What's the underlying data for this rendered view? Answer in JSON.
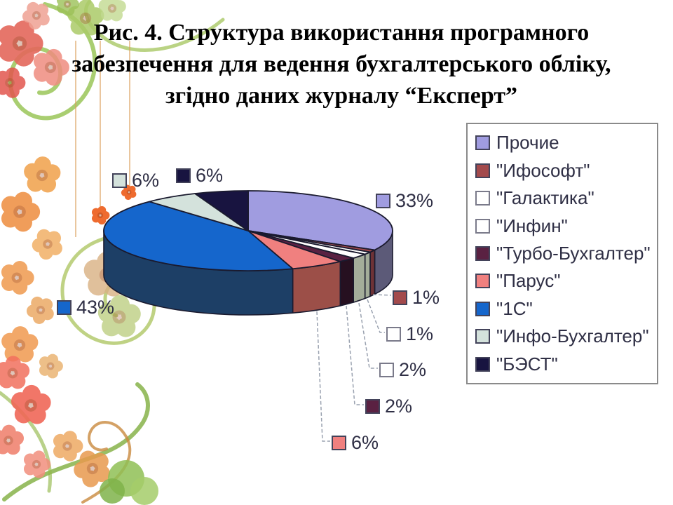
{
  "slide": {
    "title_lines": [
      "Рис. 4. Структура використання програмного",
      "забезпечення для ведення бухгалтерського обліку,",
      "згідно даних журналу “Експерт”"
    ]
  },
  "chart_data": {
    "type": "pie",
    "style": "3d-exploded-none",
    "start_angle_deg": 0,
    "direction": "clockwise",
    "legend_position": "right",
    "categories": [
      "Прочие",
      "\"Ифософт\"",
      "\"Галактика\"",
      "\"Инфин\"",
      "\"Турбо-Бухгалтер\"",
      "\"Парус\"",
      "\"1С\"",
      "\"Инфо-Бухгалтер\"",
      "\"БЭСТ\""
    ],
    "values": [
      33,
      1,
      1,
      2,
      2,
      6,
      43,
      6,
      6
    ],
    "slices": [
      {
        "label": "Прочие",
        "value": 33,
        "pct_label": "33%",
        "color": "#a09ce0",
        "side_color": "#5c5a78"
      },
      {
        "label": "\"Ифософт\"",
        "value": 1,
        "pct_label": "1%",
        "color": "#a34a4c",
        "side_color": "#6e3236"
      },
      {
        "label": "\"Галактика\"",
        "value": 1,
        "pct_label": "1%",
        "color": "#ffffff",
        "side_color": "#a4ad9a"
      },
      {
        "label": "\"Инфин\"",
        "value": 2,
        "pct_label": "2%",
        "color": "#ffffff",
        "side_color": "#a4ad9a"
      },
      {
        "label": "\"Турбо-Бухгалтер\"",
        "value": 2,
        "pct_label": "2%",
        "color": "#5a2142",
        "side_color": "#261020"
      },
      {
        "label": "\"Парус\"",
        "value": 6,
        "pct_label": "6%",
        "color": "#f0807f",
        "side_color": "#9c4f48"
      },
      {
        "label": "\"1С\"",
        "value": 43,
        "pct_label": "43%",
        "color": "#1566cc",
        "side_color": "#1d3f66"
      },
      {
        "label": "\"Инфо-Бухгалтер\"",
        "value": 6,
        "pct_label": "6%",
        "color": "#d4e2dc",
        "side_color": "#8fa29a"
      },
      {
        "label": "\"БЭСТ\"",
        "value": 6,
        "pct_label": "6%",
        "color": "#181440",
        "side_color": "#0c0a24"
      }
    ],
    "colors": {
      "slice_outline": "#1a1a2e",
      "leader_line": "#9aa2b0",
      "label_text": "#2f2f45",
      "legend_border": "#8a8a8a",
      "background": "#ffffff"
    }
  }
}
